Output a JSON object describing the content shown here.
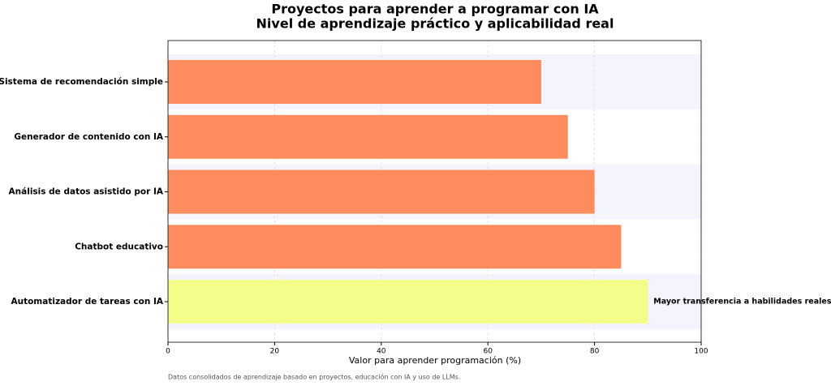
{
  "chart_data": {
    "type": "barh",
    "title": "Proyectos para aprender a programar con IA",
    "subtitle": "Nivel de aprendizaje práctico y aplicabilidad real",
    "categories": [
      "Sistema de recomendación simple",
      "Generador de contenido con IA",
      "Análisis de datos asistido por IA",
      "Chatbot educativo",
      "Automatizador de tareas con IA"
    ],
    "values": [
      70,
      75,
      80,
      85,
      90
    ],
    "colors": [
      "#ff8c5f",
      "#ff8c5f",
      "#ff8c5f",
      "#ff8c5f",
      "#f4fc8a"
    ],
    "xlim": [
      0,
      100
    ],
    "xticks": [
      0,
      20,
      40,
      60,
      80,
      100
    ],
    "grid": true,
    "xlabel": "Valor para aprender programación (%)",
    "annotation": "Mayor transferencia a habilidades reales",
    "note": "Datos consolidados de aprendizaje basado en proyectos, educación con IA y uso de LLMs."
  }
}
